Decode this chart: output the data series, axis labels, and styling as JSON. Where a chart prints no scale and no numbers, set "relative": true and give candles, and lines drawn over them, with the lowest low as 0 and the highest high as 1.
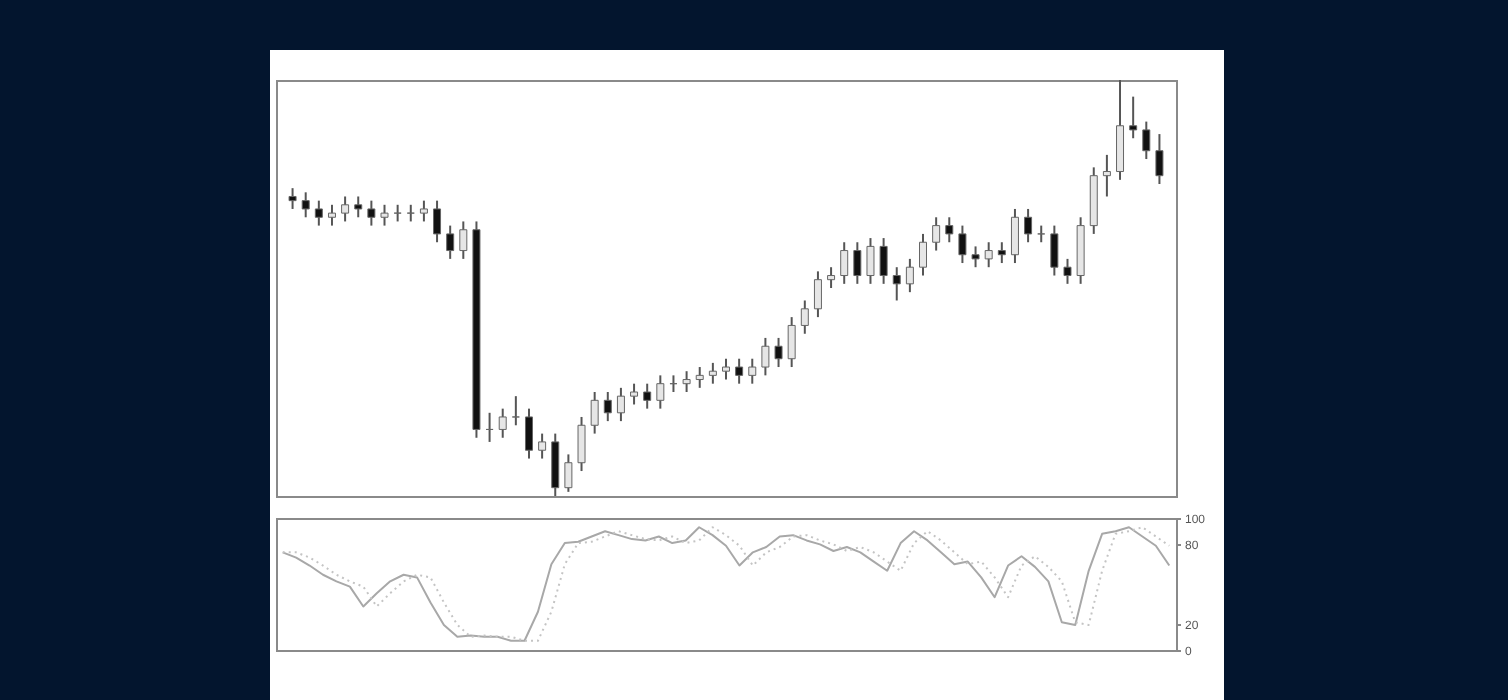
{
  "chart_data": [
    {
      "type": "candlestick",
      "relative": true,
      "categories": [
        null,
        null,
        null,
        null,
        null,
        null,
        null,
        null,
        null,
        null,
        null,
        null,
        null,
        null,
        null,
        null,
        null,
        null,
        null,
        null,
        null,
        null,
        null,
        null,
        null,
        null,
        null,
        null,
        null,
        null,
        null,
        null,
        null,
        null,
        null,
        null,
        null,
        null,
        null,
        null,
        null,
        null,
        null,
        null,
        null,
        null,
        null,
        null,
        null,
        null,
        null,
        null,
        null,
        null,
        null,
        null,
        null,
        null,
        null,
        null,
        null,
        null,
        null,
        null,
        null,
        null,
        null
      ],
      "ohlc": [
        [
          0.72,
          0.74,
          0.69,
          0.71
        ],
        [
          0.71,
          0.73,
          0.67,
          0.69
        ],
        [
          0.69,
          0.71,
          0.65,
          0.67
        ],
        [
          0.67,
          0.7,
          0.65,
          0.68
        ],
        [
          0.68,
          0.72,
          0.66,
          0.7
        ],
        [
          0.7,
          0.72,
          0.67,
          0.69
        ],
        [
          0.69,
          0.71,
          0.65,
          0.67
        ],
        [
          0.67,
          0.7,
          0.65,
          0.68
        ],
        [
          0.68,
          0.7,
          0.66,
          0.68
        ],
        [
          0.68,
          0.7,
          0.66,
          0.68
        ],
        [
          0.68,
          0.71,
          0.66,
          0.69
        ],
        [
          0.69,
          0.71,
          0.61,
          0.63
        ],
        [
          0.63,
          0.65,
          0.57,
          0.59
        ],
        [
          0.59,
          0.66,
          0.57,
          0.64
        ],
        [
          0.64,
          0.66,
          0.14,
          0.16
        ],
        [
          0.16,
          0.2,
          0.13,
          0.16
        ],
        [
          0.16,
          0.21,
          0.14,
          0.19
        ],
        [
          0.19,
          0.24,
          0.17,
          0.19
        ],
        [
          0.19,
          0.21,
          0.09,
          0.11
        ],
        [
          0.11,
          0.15,
          0.09,
          0.13
        ],
        [
          0.13,
          0.15,
          0.0,
          0.02
        ],
        [
          0.02,
          0.1,
          0.01,
          0.08
        ],
        [
          0.08,
          0.19,
          0.06,
          0.17
        ],
        [
          0.17,
          0.25,
          0.15,
          0.23
        ],
        [
          0.23,
          0.25,
          0.18,
          0.2
        ],
        [
          0.2,
          0.26,
          0.18,
          0.24
        ],
        [
          0.24,
          0.27,
          0.22,
          0.25
        ],
        [
          0.25,
          0.27,
          0.21,
          0.23
        ],
        [
          0.23,
          0.29,
          0.21,
          0.27
        ],
        [
          0.27,
          0.29,
          0.25,
          0.27
        ],
        [
          0.27,
          0.3,
          0.25,
          0.28
        ],
        [
          0.28,
          0.31,
          0.26,
          0.29
        ],
        [
          0.29,
          0.32,
          0.27,
          0.3
        ],
        [
          0.3,
          0.33,
          0.28,
          0.31
        ],
        [
          0.31,
          0.33,
          0.27,
          0.29
        ],
        [
          0.29,
          0.33,
          0.27,
          0.31
        ],
        [
          0.31,
          0.38,
          0.29,
          0.36
        ],
        [
          0.36,
          0.38,
          0.31,
          0.33
        ],
        [
          0.33,
          0.43,
          0.31,
          0.41
        ],
        [
          0.41,
          0.47,
          0.39,
          0.45
        ],
        [
          0.45,
          0.54,
          0.43,
          0.52
        ],
        [
          0.52,
          0.55,
          0.5,
          0.53
        ],
        [
          0.53,
          0.61,
          0.51,
          0.59
        ],
        [
          0.59,
          0.61,
          0.51,
          0.53
        ],
        [
          0.53,
          0.62,
          0.51,
          0.6
        ],
        [
          0.6,
          0.62,
          0.51,
          0.53
        ],
        [
          0.53,
          0.55,
          0.47,
          0.51
        ],
        [
          0.51,
          0.57,
          0.49,
          0.55
        ],
        [
          0.55,
          0.63,
          0.53,
          0.61
        ],
        [
          0.61,
          0.67,
          0.59,
          0.65
        ],
        [
          0.65,
          0.67,
          0.61,
          0.63
        ],
        [
          0.63,
          0.65,
          0.56,
          0.58
        ],
        [
          0.58,
          0.6,
          0.55,
          0.57
        ],
        [
          0.57,
          0.61,
          0.55,
          0.59
        ],
        [
          0.59,
          0.61,
          0.56,
          0.58
        ],
        [
          0.58,
          0.69,
          0.56,
          0.67
        ],
        [
          0.67,
          0.69,
          0.61,
          0.63
        ],
        [
          0.63,
          0.65,
          0.61,
          0.63
        ],
        [
          0.63,
          0.65,
          0.53,
          0.55
        ],
        [
          0.55,
          0.57,
          0.51,
          0.53
        ],
        [
          0.53,
          0.67,
          0.51,
          0.65
        ],
        [
          0.65,
          0.79,
          0.63,
          0.77
        ],
        [
          0.77,
          0.82,
          0.72,
          0.78
        ],
        [
          0.78,
          1.0,
          0.76,
          0.89
        ],
        [
          0.89,
          0.96,
          0.86,
          0.88
        ],
        [
          0.88,
          0.9,
          0.81,
          0.83
        ],
        [
          0.83,
          0.87,
          0.75,
          0.77
        ]
      ]
    },
    {
      "type": "line",
      "ylim": [
        0,
        100
      ],
      "yticks": [
        0,
        20,
        80,
        100
      ],
      "categories": [
        null,
        null,
        null,
        null,
        null,
        null,
        null,
        null,
        null,
        null,
        null,
        null,
        null,
        null,
        null,
        null,
        null,
        null,
        null,
        null,
        null,
        null,
        null,
        null,
        null,
        null,
        null,
        null,
        null,
        null,
        null,
        null,
        null,
        null,
        null,
        null,
        null,
        null,
        null,
        null,
        null,
        null,
        null,
        null,
        null,
        null,
        null,
        null,
        null,
        null,
        null,
        null,
        null,
        null,
        null,
        null,
        null,
        null,
        null,
        null,
        null,
        null,
        null,
        null,
        null,
        null,
        null
      ],
      "series": [
        {
          "color": "#a8a8a8",
          "line_style": "solid",
          "values": [
            74,
            70,
            64,
            57,
            52,
            48,
            33,
            43,
            52,
            57,
            55,
            36,
            19,
            10,
            11,
            10,
            10,
            7,
            7,
            29,
            65,
            81,
            82,
            86,
            90,
            87,
            84,
            83,
            86,
            81,
            83,
            93,
            87,
            79,
            64,
            74,
            78,
            86,
            87,
            83,
            80,
            75,
            78,
            74,
            67,
            60,
            81,
            90,
            83,
            74,
            65,
            67,
            55,
            40,
            64,
            71,
            63,
            52,
            21,
            19,
            60,
            88,
            90,
            93,
            86,
            79,
            64
          ]
        },
        {
          "color": "#c4c4c4",
          "line_style": "dotted",
          "values": [
            74,
            74,
            70,
            64,
            57,
            52,
            48,
            33,
            43,
            52,
            57,
            55,
            36,
            19,
            10,
            11,
            10,
            10,
            7,
            7,
            29,
            65,
            81,
            82,
            86,
            90,
            87,
            84,
            83,
            86,
            81,
            83,
            93,
            87,
            79,
            64,
            74,
            78,
            86,
            87,
            83,
            80,
            75,
            78,
            74,
            67,
            60,
            81,
            90,
            83,
            74,
            65,
            67,
            55,
            40,
            64,
            71,
            63,
            52,
            21,
            19,
            60,
            88,
            90,
            93,
            86,
            79
          ]
        }
      ]
    }
  ]
}
